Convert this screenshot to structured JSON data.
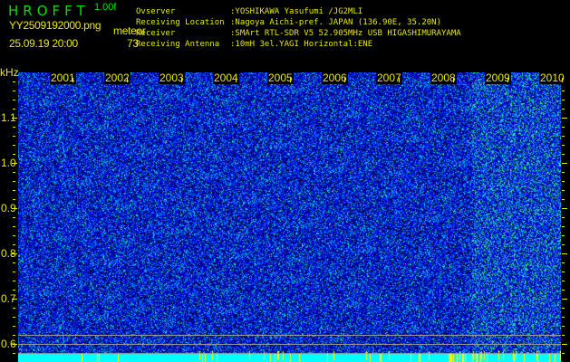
{
  "app": {
    "title": "HROFFT",
    "version": "1.00f"
  },
  "file": {
    "name": "YY2509192000.png",
    "datetime": "25.09.19 20:00"
  },
  "meteor": {
    "label": "meteor",
    "count": "73"
  },
  "info": [
    {
      "label": "Ovserver",
      "value": ":YOSHIKAWA Yasufumi /JG2MLI"
    },
    {
      "label": "Receiving Location",
      "value": ":Nagoya Aichi-pref. JAPAN (136.90E, 35.20N)"
    },
    {
      "label": "Receiver",
      "value": ":SMArt RTL-SDR V5 52.905MHz USB HIGASHIMURAYAMA"
    },
    {
      "label": "Receiving Antenna",
      "value": ":10mH 3el.YAGI Horizontal:ENE"
    }
  ],
  "axis": {
    "y_unit": "kHz",
    "y_ticks": [
      "1.1",
      "1.0",
      "0.9",
      "0.8",
      "0.7",
      "0.6"
    ],
    "x_ticks": [
      "2001",
      "2002",
      "2003",
      "2004",
      "2005",
      "2006",
      "2007",
      "2008",
      "2009",
      "2010"
    ]
  },
  "colors": {
    "text_green": "#00e000",
    "text_yellow": "#e8e800",
    "signal_cyan": "#00ffff",
    "meteor_yellow": "#ffff00",
    "background_blue": "#0000cc"
  }
}
